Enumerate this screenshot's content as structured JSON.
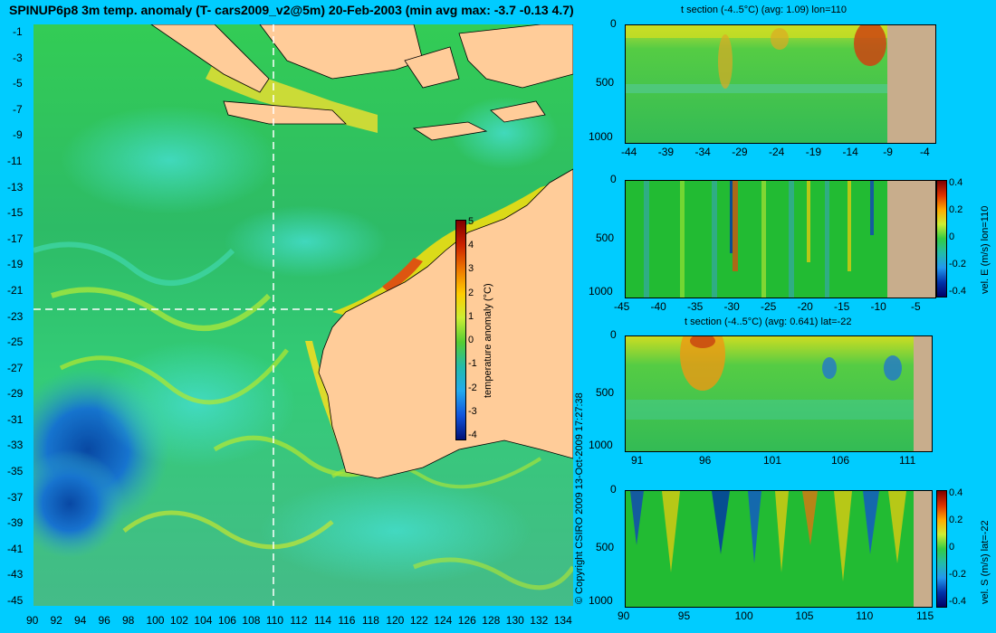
{
  "title": "SPINUP6p8 3m temp. anomaly (T- cars2009_v2@5m) 20-Feb-2003 (min avg max: -3.7 -0.13 4.7)",
  "copyright": "© Copyright CSIRO 2009   13-Oct-2009 17:27:38",
  "colors": {
    "background": "#00ccff",
    "land": "#ffcc99",
    "seabed": "#c8ad8c",
    "warm": "#cc3300",
    "neutral": "#22bb44",
    "cold": "#0033aa"
  },
  "main_map": {
    "lat_ticks": [
      "-1",
      "-3",
      "-5",
      "-7",
      "-9",
      "-11",
      "-13",
      "-15",
      "-17",
      "-19",
      "-21",
      "-23",
      "-25",
      "-27",
      "-29",
      "-31",
      "-33",
      "-35",
      "-37",
      "-39",
      "-41",
      "-43",
      "-45"
    ],
    "lon_ticks": [
      "90",
      "92",
      "94",
      "96",
      "98",
      "100",
      "102",
      "104",
      "106",
      "108",
      "110",
      "112",
      "114",
      "116",
      "118",
      "120",
      "122",
      "124",
      "126",
      "128",
      "130",
      "132",
      "134"
    ],
    "section_lon": 110,
    "section_lat": -22,
    "colorbar": {
      "label": "temperature anomaly (°C)",
      "ticks": [
        "5",
        "4",
        "3",
        "2",
        "1",
        "0",
        "-1",
        "-2",
        "-3",
        "-4"
      ]
    }
  },
  "panels": {
    "p1": {
      "title": "t section (-4..5°C) (avg: 1.09) lon=110",
      "y_ticks": [
        "0",
        "500",
        "1000"
      ],
      "x_ticks": [
        "-44",
        "-39",
        "-34",
        "-29",
        "-24",
        "-19",
        "-14",
        "-9",
        "-4"
      ]
    },
    "p2": {
      "title": "",
      "y_ticks": [
        "0",
        "500",
        "1000"
      ],
      "x_ticks": [
        "-45",
        "-40",
        "-35",
        "-30",
        "-25",
        "-20",
        "-15",
        "-10",
        "-5"
      ],
      "colorbar_label": "vel. E (m/s) lon=110",
      "colorbar_ticks": [
        "0.4",
        "0.2",
        "0",
        "-0.2",
        "-0.4"
      ]
    },
    "p3": {
      "title": "t section (-4..5°C) (avg: 0.641) lat=-22",
      "y_ticks": [
        "0",
        "500",
        "1000"
      ],
      "x_ticks": [
        "91",
        "96",
        "101",
        "106",
        "111"
      ]
    },
    "p4": {
      "title": "",
      "y_ticks": [
        "0",
        "500",
        "1000"
      ],
      "x_ticks": [
        "90",
        "95",
        "100",
        "105",
        "110",
        "115"
      ],
      "colorbar_label": "vel. S (m/s) lat=-22",
      "colorbar_ticks": [
        "0.4",
        "0.2",
        "0",
        "-0.2",
        "-0.4"
      ]
    }
  }
}
